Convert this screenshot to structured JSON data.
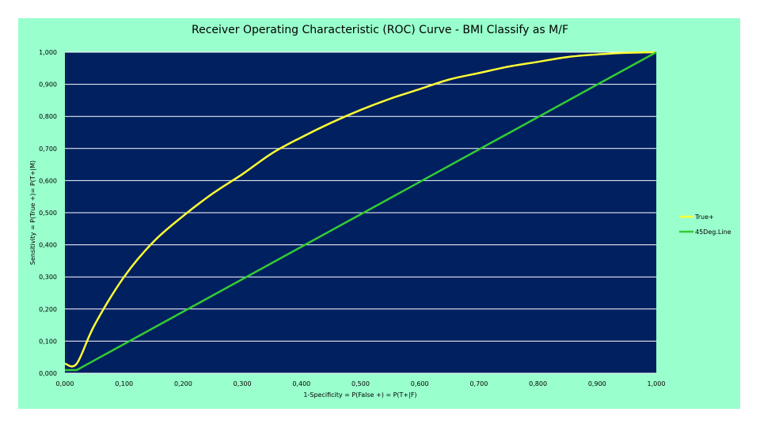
{
  "chart_data": {
    "type": "line",
    "title": "Receiver Operating Characteristic (ROC) Curve - BMI Classify as M/F",
    "xlabel": "1-Specificity = P(False +) = P(T+|F)",
    "ylabel": "Sensitivity = P(True +)= P(T+|M)",
    "xlim": [
      0,
      1
    ],
    "ylim": [
      0,
      1
    ],
    "x_ticks": [
      "0,000",
      "0,100",
      "0,200",
      "0,300",
      "0,400",
      "0,500",
      "0,600",
      "0,700",
      "0,800",
      "0,900",
      "1,000"
    ],
    "y_ticks": [
      "0,000",
      "0,100",
      "0,200",
      "0,300",
      "0,400",
      "0,500",
      "0,600",
      "0,700",
      "0,800",
      "0,900",
      "1,000"
    ],
    "grid": "horizontal",
    "legend_position": "right",
    "series": [
      {
        "name": "True+",
        "color": "#ffff33",
        "x": [
          0.0,
          0.02,
          0.05,
          0.1,
          0.15,
          0.2,
          0.25,
          0.3,
          0.35,
          0.4,
          0.45,
          0.5,
          0.55,
          0.6,
          0.65,
          0.7,
          0.75,
          0.8,
          0.85,
          0.9,
          0.95,
          1.0
        ],
        "y": [
          0.03,
          0.03,
          0.15,
          0.3,
          0.41,
          0.49,
          0.56,
          0.62,
          0.685,
          0.735,
          0.78,
          0.82,
          0.855,
          0.885,
          0.915,
          0.935,
          0.955,
          0.97,
          0.985,
          0.993,
          0.998,
          1.0
        ]
      },
      {
        "name": "45Deg.Line",
        "color": "#33cc33",
        "x": [
          0.0,
          0.02,
          1.0
        ],
        "y": [
          0.01,
          0.01,
          1.0
        ]
      }
    ]
  }
}
